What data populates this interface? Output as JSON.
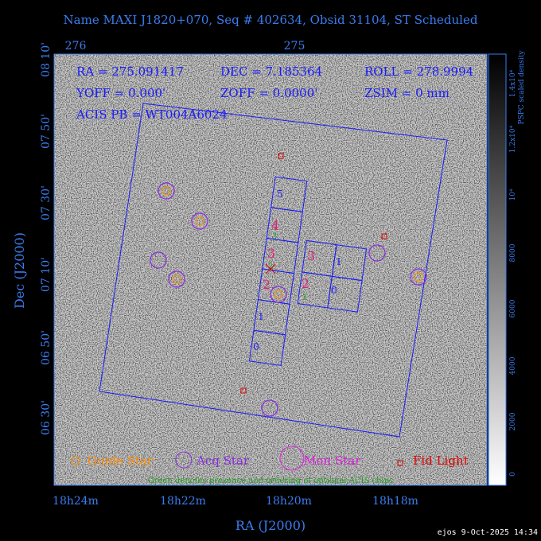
{
  "header": {
    "title": "Name MAXI J1820+070, Seq # 402634, Obsid 31104, ST Scheduled"
  },
  "axes": {
    "top_labels": [
      "276",
      "275"
    ],
    "left_labels": [
      "08 10'",
      "07 50'",
      "07 30'",
      "07 10'",
      "06 50'",
      "06 30'"
    ],
    "bottom_labels": [
      "18h24m",
      "18h22m",
      "18h20m",
      "18h18m"
    ],
    "x_title": "RA (J2000)",
    "y_title": "Dec (J2000)"
  },
  "info": {
    "ra": "RA = 275.091417",
    "dec": "DEC = 7.185364",
    "roll": "ROLL = 278.9994",
    "yoff": "YOFF =   0.000'",
    "zoff": "ZOFF =  0.0000'",
    "zsim": "ZSIM = 0 mm",
    "acis_pb": "ACIS PB = WT004A6024"
  },
  "colorbar": {
    "ticks": [
      "0",
      "2000",
      "4000",
      "6000",
      "8000",
      "10⁴",
      "1.2x10⁴",
      "1.4x10⁴"
    ],
    "label": "PSPC scaled density"
  },
  "chips": {
    "s_array": [
      "5",
      "4",
      "3",
      "2",
      "1",
      "0"
    ],
    "i_array": [
      "3",
      "1",
      "2",
      "0"
    ],
    "optional": [
      "3",
      "2",
      "1"
    ]
  },
  "legend": [
    "Guide Star",
    "Acq Star",
    "Mon Star",
    "Fid Light"
  ],
  "note": "Green denotes presence and ordering of optional ACIS chips",
  "footer": "ejos  9-Oct-2025 14:34"
}
